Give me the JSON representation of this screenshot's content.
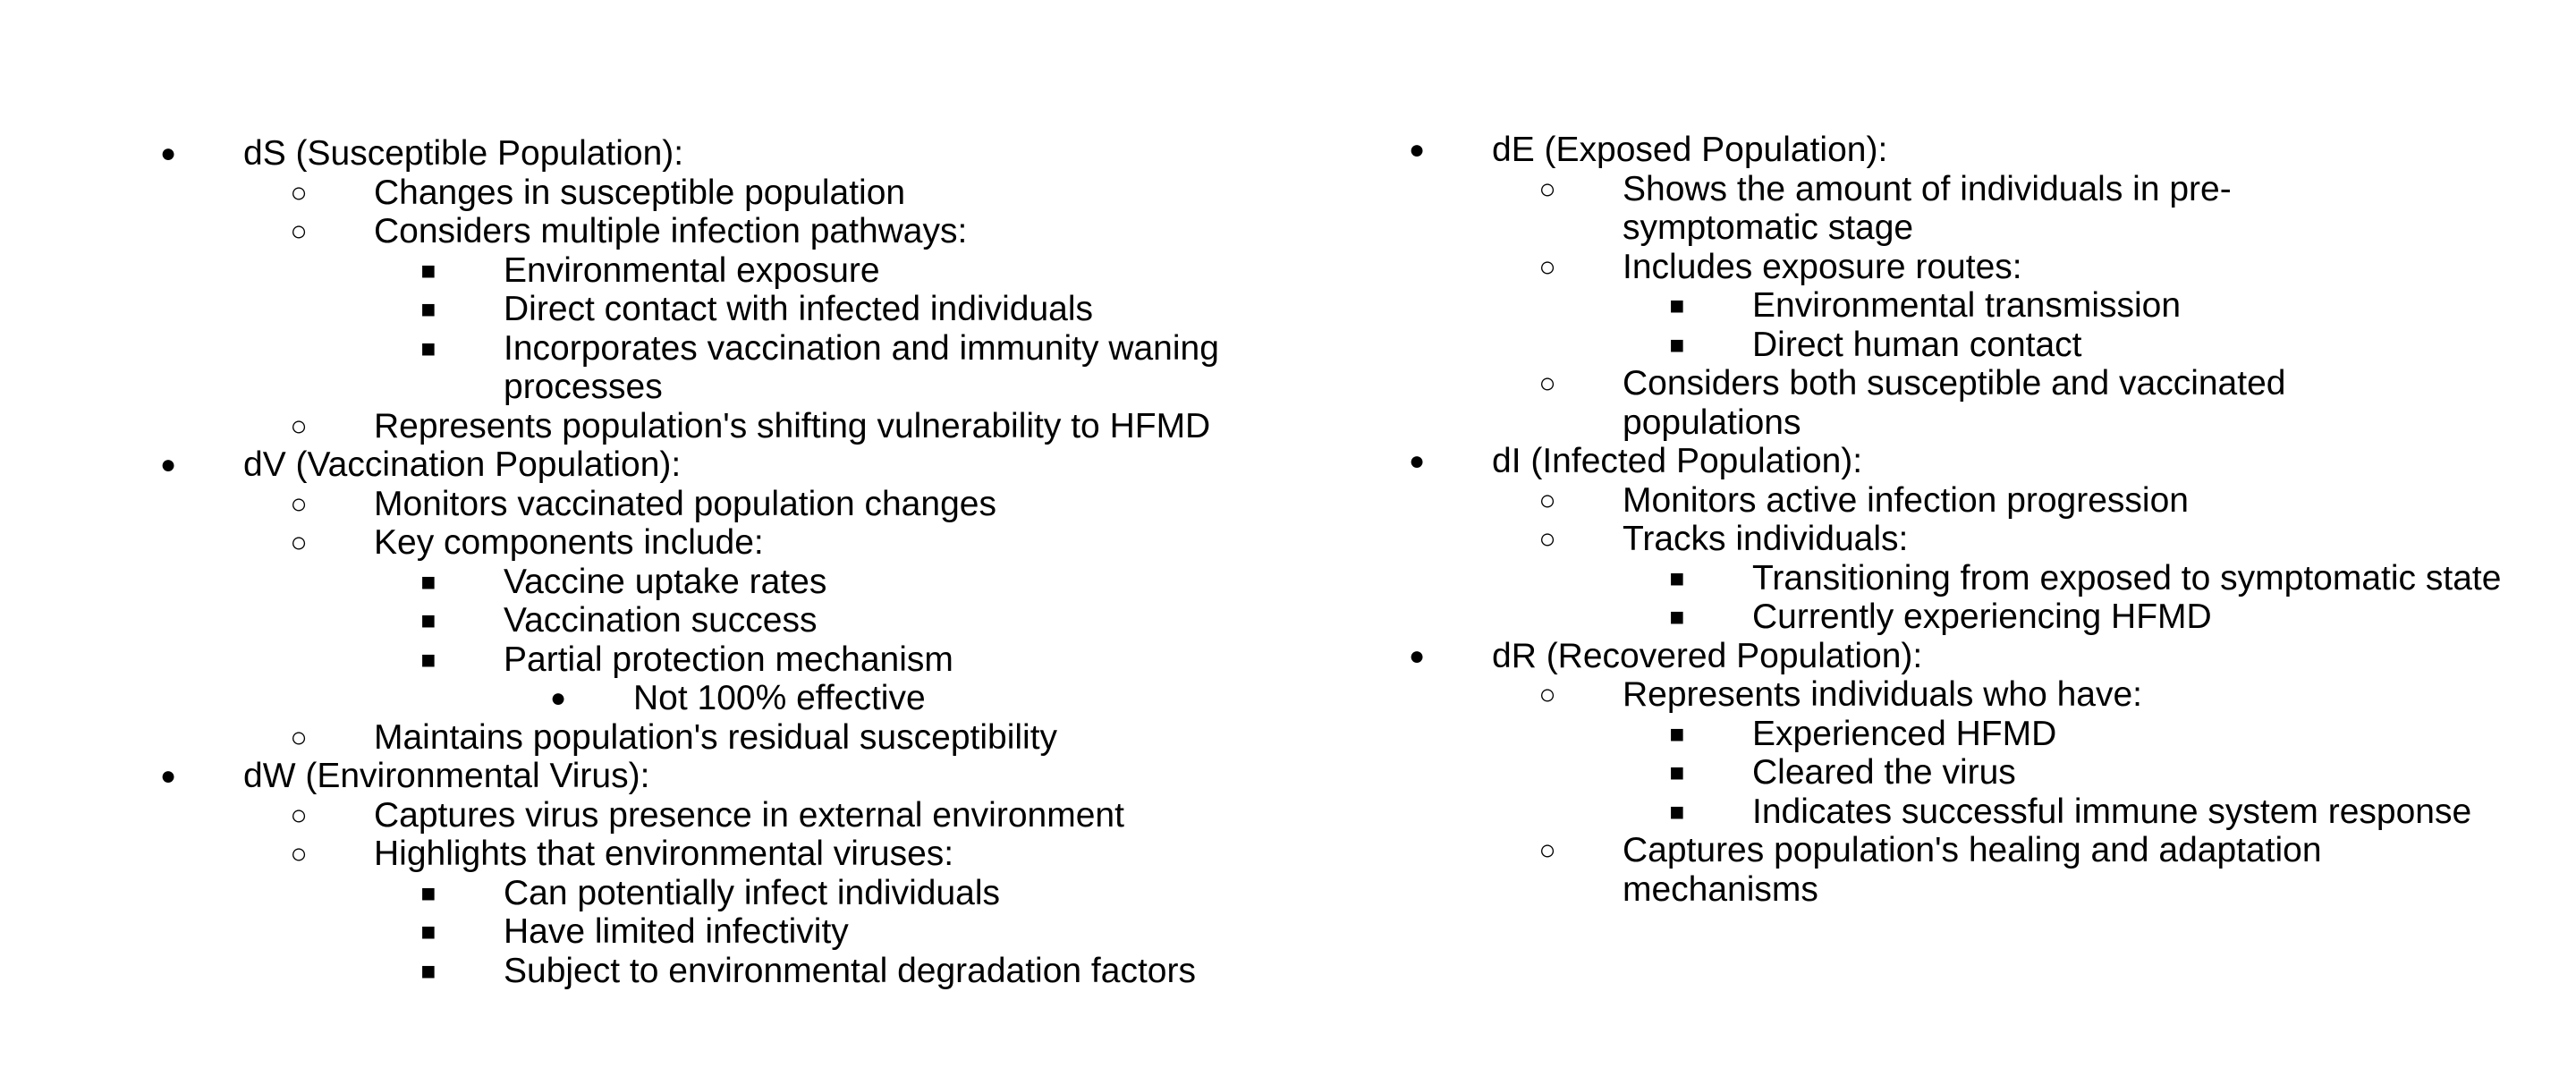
{
  "left": {
    "dS": {
      "heading": "dS (Susceptible Population):",
      "items": [
        "Changes in susceptible population",
        "Considers multiple infection pathways:",
        "Represents population's shifting vulnerability to HFMD"
      ],
      "pathways": [
        "Environmental exposure",
        "Direct contact with infected individuals",
        "Incorporates vaccination and immunity waning processes"
      ]
    },
    "dV": {
      "heading": "dV (Vaccination Population):",
      "items": [
        "Monitors vaccinated population changes",
        "Key components include:",
        "Maintains population's residual susceptibility"
      ],
      "components": [
        "Vaccine uptake rates",
        "Vaccination success",
        "Partial protection mechanism"
      ],
      "partial": "Not 100% effective"
    },
    "dW": {
      "heading": "dW (Environmental Virus):",
      "items": [
        "Captures virus presence in external environment",
        "Highlights that environmental viruses:"
      ],
      "viruses": [
        "Can potentially infect individuals",
        "Have limited infectivity",
        "Subject to environmental degradation factors"
      ]
    }
  },
  "right": {
    "dE": {
      "heading": "dE (Exposed Population):",
      "items": [
        "Shows the amount of individuals in pre-symptomatic stage",
        "Includes exposure routes:",
        "Considers both susceptible and vaccinated populations"
      ],
      "routes": [
        "Environmental transmission",
        "Direct human contact"
      ]
    },
    "dI": {
      "heading": "dI (Infected Population):",
      "items": [
        "Monitors active infection progression",
        "Tracks individuals:"
      ],
      "tracks": [
        "Transitioning from exposed to symptomatic state",
        "Currently experiencing HFMD"
      ]
    },
    "dR": {
      "heading": "dR (Recovered Population):",
      "items": [
        "Represents individuals who have:",
        "Captures population's healing and adaptation mechanisms"
      ],
      "have": [
        "Experienced HFMD",
        "Cleared the virus",
        "Indicates successful immune system response"
      ]
    }
  },
  "bullets": {
    "disc": "●",
    "circle": "○",
    "square": "■"
  }
}
